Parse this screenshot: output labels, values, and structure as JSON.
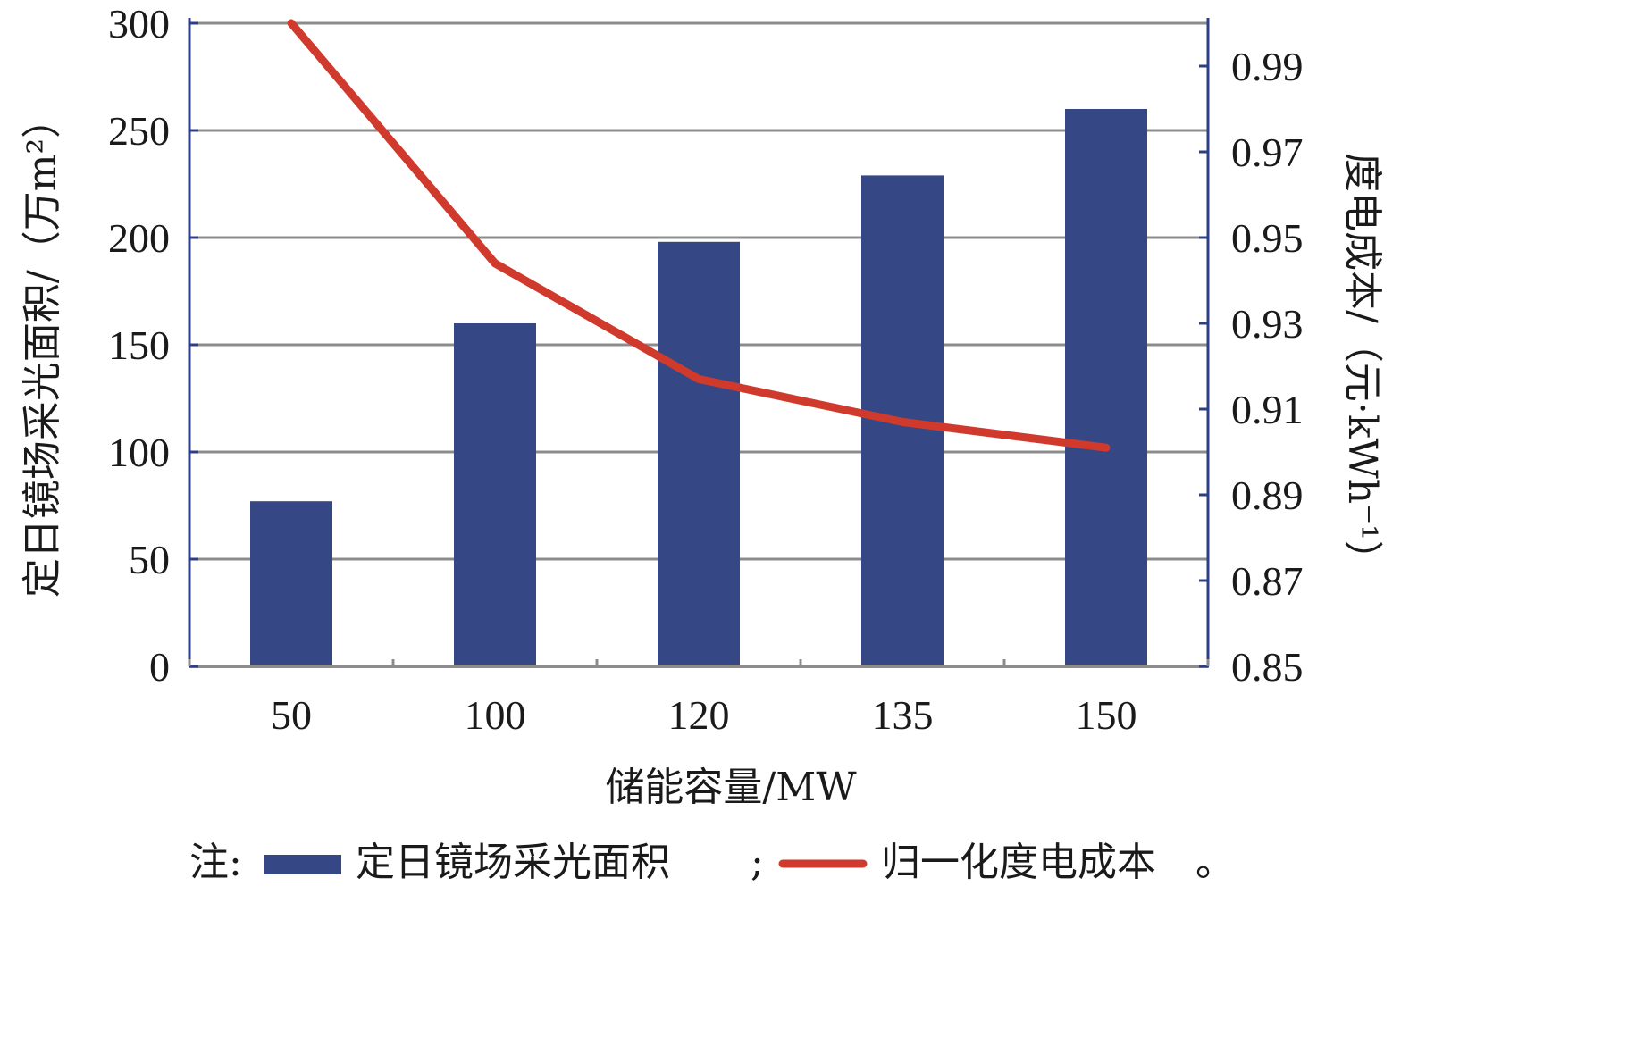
{
  "chart_data": {
    "type": "bar+line",
    "categories": [
      "50",
      "100",
      "120",
      "135",
      "150"
    ],
    "series": [
      {
        "name": "定日镜场采光面积",
        "type": "bar",
        "axis": "left",
        "values": [
          77,
          160,
          198,
          229,
          260
        ],
        "color": "#354784"
      },
      {
        "name": "归一化度电成本",
        "type": "line",
        "axis": "right",
        "values": [
          1.0,
          0.944,
          0.917,
          0.907,
          0.901
        ],
        "color": "#d03a2c"
      }
    ],
    "xlabel": "储能容量/MW",
    "ylabel_left": "定日镜场采光面积/（万m²）",
    "ylabel_right": "度电成本/（元·kWh⁻¹）",
    "ylim_left": [
      0,
      300
    ],
    "ylim_right": [
      0.85,
      1.0
    ],
    "yticks_left": [
      "0",
      "50",
      "100",
      "150",
      "200",
      "250",
      "300"
    ],
    "yticks_right": [
      "0.85",
      "0.87",
      "0.89",
      "0.91",
      "0.93",
      "0.95",
      "0.97",
      "0.99"
    ],
    "grid": true,
    "legend_position": "bottom",
    "legend_prefix": "注:",
    "legend_sep": ";",
    "legend_end": "。"
  }
}
